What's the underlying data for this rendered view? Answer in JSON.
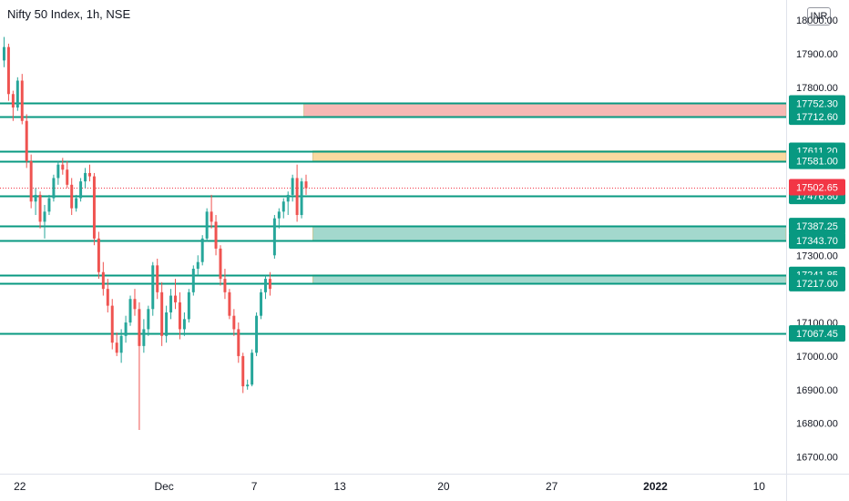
{
  "header": {
    "title": "Nifty 50 Index, 1h, NSE",
    "currency_label": "INR"
  },
  "colors": {
    "up": "#26a69a",
    "down": "#ef5350",
    "level_line": "#089981",
    "label_bg": "#089981",
    "price_label_bg": "#f23645",
    "resistance_zone": "#f7b5b0",
    "supply_zone": "#fad79a",
    "demand_zone": "#9fd6cb",
    "axis_text": "#131722"
  },
  "chart_data": {
    "type": "candlestick",
    "title": "Nifty 50 Index, 1h, NSE",
    "currency": "INR",
    "ylim": [
      16650,
      18060
    ],
    "grid": false,
    "y_ticks": [
      {
        "value": 18000,
        "label": "18000.00"
      },
      {
        "value": 17900,
        "label": "17900.00"
      },
      {
        "value": 17800,
        "label": "17800.00"
      },
      {
        "value": 17400,
        "label": "17400.00"
      },
      {
        "value": 17300,
        "label": "17300.00"
      },
      {
        "value": 17100,
        "label": "17100.00"
      },
      {
        "value": 17000,
        "label": "17000.00"
      },
      {
        "value": 16900,
        "label": "16900.00"
      },
      {
        "value": 16800,
        "label": "16800.00"
      },
      {
        "value": 16700,
        "label": "16700.00"
      }
    ],
    "x_ticks": [
      {
        "label": "22",
        "index": 4,
        "bold": false
      },
      {
        "label": "Dec",
        "index": 36,
        "bold": false
      },
      {
        "label": "7",
        "index": 56,
        "bold": false
      },
      {
        "label": "13",
        "index": 75,
        "bold": false
      },
      {
        "label": "20",
        "index": 98,
        "bold": false
      },
      {
        "label": "27",
        "index": 122,
        "bold": false
      },
      {
        "label": "2022",
        "index": 145,
        "bold": true
      },
      {
        "label": "10",
        "index": 168,
        "bold": false
      }
    ],
    "x_index_range": [
      0,
      174
    ],
    "horizontal_levels": [
      {
        "value": 17752.3,
        "label": "17752.30"
      },
      {
        "value": 17712.6,
        "label": "17712.60"
      },
      {
        "value": 17611.2,
        "label": "17611.20"
      },
      {
        "value": 17581.0,
        "label": "17581.00"
      },
      {
        "value": 17476.8,
        "label": "17476.80"
      },
      {
        "value": 17387.25,
        "label": "17387.25"
      },
      {
        "value": 17343.7,
        "label": "17343.70"
      },
      {
        "value": 17241.85,
        "label": "17241.85"
      },
      {
        "value": 17217.0,
        "label": "17217.00"
      },
      {
        "value": 17067.45,
        "label": "17067.45"
      }
    ],
    "zones": [
      {
        "from": 17712.6,
        "to": 17752.3,
        "start_index": 67,
        "fill": "resistance"
      },
      {
        "from": 17581.0,
        "to": 17611.2,
        "start_index": 69,
        "fill": "supply"
      },
      {
        "from": 17343.7,
        "to": 17387.25,
        "start_index": 69,
        "fill": "demand"
      },
      {
        "from": 17217.0,
        "to": 17241.85,
        "start_index": 69,
        "fill": "demand"
      }
    ],
    "last_price": {
      "value": 17502.65,
      "label": "17502.65"
    },
    "candles": [
      [
        17880,
        17950,
        17860,
        17920
      ],
      [
        17920,
        17930,
        17760,
        17780
      ],
      [
        17780,
        17790,
        17700,
        17740
      ],
      [
        17740,
        17830,
        17730,
        17820
      ],
      [
        17820,
        17840,
        17690,
        17700
      ],
      [
        17700,
        17720,
        17560,
        17580
      ],
      [
        17580,
        17600,
        17440,
        17460
      ],
      [
        17460,
        17500,
        17420,
        17480
      ],
      [
        17480,
        17490,
        17380,
        17400
      ],
      [
        17400,
        17450,
        17350,
        17430
      ],
      [
        17430,
        17480,
        17420,
        17470
      ],
      [
        17470,
        17540,
        17460,
        17530
      ],
      [
        17530,
        17580,
        17510,
        17570
      ],
      [
        17570,
        17590,
        17540,
        17555
      ],
      [
        17555,
        17580,
        17500,
        17510
      ],
      [
        17510,
        17530,
        17420,
        17440
      ],
      [
        17440,
        17480,
        17430,
        17470
      ],
      [
        17470,
        17530,
        17460,
        17520
      ],
      [
        17520,
        17560,
        17500,
        17545
      ],
      [
        17545,
        17570,
        17520,
        17535
      ],
      [
        17535,
        17545,
        17330,
        17350
      ],
      [
        17350,
        17370,
        17230,
        17250
      ],
      [
        17250,
        17280,
        17180,
        17200
      ],
      [
        17200,
        17230,
        17130,
        17150
      ],
      [
        17150,
        17170,
        17020,
        17040
      ],
      [
        17040,
        17070,
        17000,
        17010
      ],
      [
        17010,
        17080,
        16980,
        17060
      ],
      [
        17060,
        17120,
        17040,
        17100
      ],
      [
        17100,
        17180,
        17090,
        17170
      ],
      [
        17170,
        17200,
        17120,
        17140
      ],
      [
        17140,
        17160,
        16780,
        17030
      ],
      [
        17030,
        17110,
        17010,
        17080
      ],
      [
        17080,
        17150,
        17060,
        17140
      ],
      [
        17140,
        17280,
        17120,
        17270
      ],
      [
        17270,
        17290,
        17170,
        17190
      ],
      [
        17190,
        17220,
        17030,
        17060
      ],
      [
        17060,
        17150,
        17040,
        17130
      ],
      [
        17130,
        17200,
        17110,
        17180
      ],
      [
        17180,
        17230,
        17140,
        17160
      ],
      [
        17160,
        17190,
        17050,
        17080
      ],
      [
        17080,
        17130,
        17060,
        17110
      ],
      [
        17110,
        17200,
        17100,
        17190
      ],
      [
        17190,
        17270,
        17180,
        17260
      ],
      [
        17260,
        17300,
        17240,
        17280
      ],
      [
        17280,
        17360,
        17270,
        17350
      ],
      [
        17350,
        17440,
        17340,
        17430
      ],
      [
        17430,
        17480,
        17380,
        17400
      ],
      [
        17400,
        17420,
        17300,
        17320
      ],
      [
        17320,
        17330,
        17210,
        17230
      ],
      [
        17230,
        17260,
        17170,
        17190
      ],
      [
        17190,
        17200,
        17110,
        17120
      ],
      [
        17120,
        17140,
        17060,
        17080
      ],
      [
        17080,
        17100,
        16980,
        17000
      ],
      [
        17000,
        17010,
        16890,
        16910
      ],
      [
        16910,
        16930,
        16900,
        16915
      ],
      [
        16915,
        17020,
        16910,
        17010
      ],
      [
        17010,
        17130,
        17000,
        17120
      ],
      [
        17120,
        17200,
        17110,
        17190
      ],
      [
        17190,
        17240,
        17170,
        17230
      ],
      [
        17230,
        17250,
        17180,
        17200
      ],
      [
        17300,
        17420,
        17290,
        17410
      ],
      [
        17410,
        17440,
        17380,
        17430
      ],
      [
        17430,
        17470,
        17410,
        17460
      ],
      [
        17460,
        17490,
        17420,
        17480
      ],
      [
        17480,
        17540,
        17460,
        17530
      ],
      [
        17530,
        17570,
        17400,
        17420
      ],
      [
        17420,
        17530,
        17410,
        17520
      ],
      [
        17520,
        17540,
        17480,
        17500
      ]
    ]
  }
}
